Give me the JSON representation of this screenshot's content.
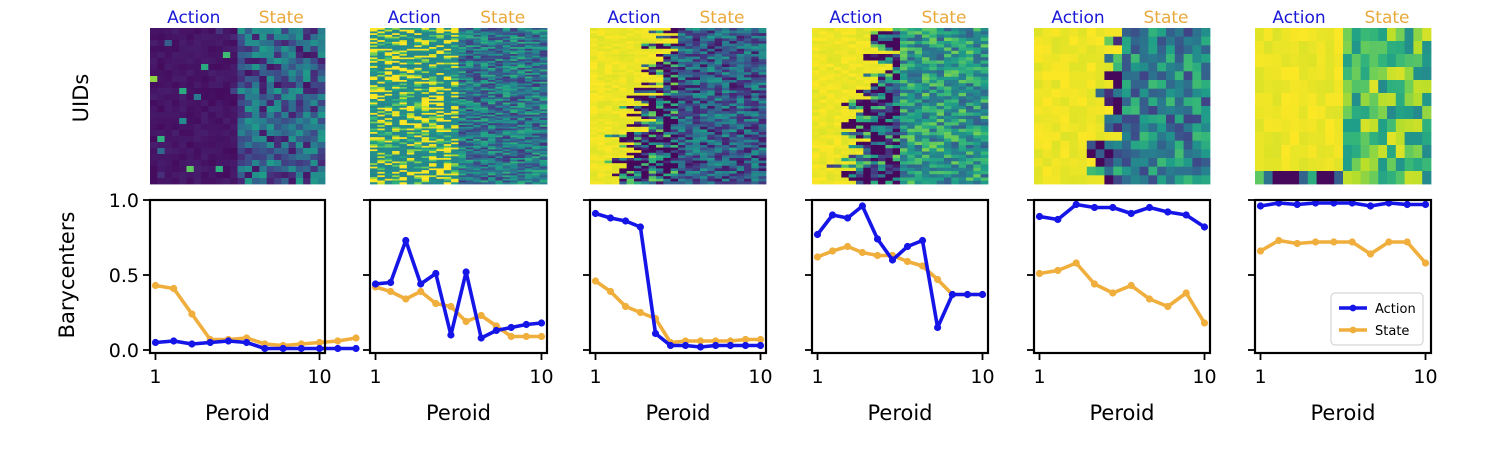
{
  "colors": {
    "action": "#1515e8",
    "state": "#f0ae3c",
    "action_title": "#1a1ad6",
    "state_title": "#e9a93c"
  },
  "icons": [
    "viridis-colormap"
  ],
  "chart_data": [
    {
      "type": "heatmap",
      "row": "top",
      "ylabel": "UIDs",
      "left_title": "Action",
      "right_title": "State",
      "panels": [
        {
          "rows": 26,
          "action_cols": 12,
          "state_cols": 12,
          "action_level": 0.03,
          "action_yellow_start": 1.1,
          "state_level": 0.3
        },
        {
          "rows": 90,
          "action_cols": 12,
          "state_cols": 12,
          "action_level": 0.45,
          "action_yellow_start": 1.1,
          "state_level": 0.4
        },
        {
          "rows": 60,
          "action_cols": 12,
          "state_cols": 12,
          "action_level": 0.55,
          "action_yellow_start": 0.0,
          "state_level": 0.3
        },
        {
          "rows": 48,
          "action_cols": 12,
          "state_cols": 12,
          "action_level": 0.6,
          "action_yellow_start": 0.0,
          "state_level": 0.55
        },
        {
          "rows": 18,
          "action_cols": 10,
          "state_cols": 10,
          "action_level": 0.8,
          "action_yellow_start": 0.0,
          "state_level": 0.45
        },
        {
          "rows": 12,
          "action_cols": 10,
          "state_cols": 10,
          "action_level": 1.0,
          "action_yellow_start": 0.0,
          "state_level": 0.72
        }
      ]
    },
    {
      "type": "line",
      "row": "bottom",
      "ylabel": "Barycenters",
      "xlabel": "Peroid",
      "xlim": [
        0.7,
        10.3
      ],
      "ylim": [
        -0.02,
        1.0
      ],
      "xticks": [
        1,
        10
      ],
      "yticks": [
        0.0,
        0.5,
        1.0
      ],
      "ytick_labels": [
        "0.0",
        "0.5",
        "1.0"
      ],
      "legend": {
        "location": "lower-right",
        "panel_index": 5,
        "entries": [
          "Action",
          "State"
        ]
      },
      "panels": [
        {
          "action_x": [
            1,
            2,
            3,
            4,
            5,
            6,
            7,
            8,
            9,
            10,
            11,
            12
          ],
          "action": [
            0.05,
            0.06,
            0.04,
            0.05,
            0.06,
            0.05,
            0.01,
            0.01,
            0.01,
            0.01,
            0.01,
            0.01
          ],
          "state_x": [
            1,
            2,
            3,
            4,
            5,
            6,
            7,
            8,
            9,
            10,
            11,
            12
          ],
          "state": [
            0.43,
            0.41,
            0.24,
            0.07,
            0.07,
            0.08,
            0.04,
            0.03,
            0.04,
            0.05,
            0.06,
            0.08
          ]
        },
        {
          "action_x": [
            1,
            1.82,
            2.64,
            3.45,
            4.27,
            5.09,
            5.91,
            6.73,
            7.55,
            8.36,
            9.18,
            10
          ],
          "action": [
            0.44,
            0.45,
            0.73,
            0.44,
            0.51,
            0.1,
            0.52,
            0.08,
            0.13,
            0.15,
            0.17,
            0.18
          ],
          "state_x": [
            1,
            1.82,
            2.64,
            3.45,
            4.27,
            5.09,
            5.91,
            6.73,
            7.55,
            8.36,
            9.18,
            10
          ],
          "state": [
            0.42,
            0.39,
            0.34,
            0.39,
            0.31,
            0.29,
            0.19,
            0.23,
            0.16,
            0.09,
            0.09,
            0.09
          ]
        },
        {
          "action_x": [
            1,
            1.82,
            2.64,
            3.45,
            4.27,
            5.09,
            5.91,
            6.73,
            7.55,
            8.36,
            9.18,
            10
          ],
          "action": [
            0.91,
            0.88,
            0.86,
            0.82,
            0.11,
            0.03,
            0.03,
            0.02,
            0.03,
            0.03,
            0.03,
            0.03
          ],
          "state_x": [
            1,
            1.82,
            2.64,
            3.45,
            4.27,
            5.09,
            5.91,
            6.73,
            7.55,
            8.36,
            9.18,
            10
          ],
          "state": [
            0.46,
            0.39,
            0.29,
            0.25,
            0.21,
            0.05,
            0.06,
            0.06,
            0.06,
            0.06,
            0.07,
            0.07
          ]
        },
        {
          "action_x": [
            1,
            1.82,
            2.64,
            3.45,
            4.27,
            5.09,
            5.91,
            6.73,
            7.55,
            8.36,
            9.18,
            10
          ],
          "action": [
            0.77,
            0.9,
            0.88,
            0.96,
            0.74,
            0.6,
            0.69,
            0.73,
            0.15,
            0.37,
            0.37,
            0.37
          ],
          "state_x": [
            1,
            1.82,
            2.64,
            3.45,
            4.27,
            5.09,
            5.91,
            6.73,
            7.55,
            8.36,
            9.18,
            10
          ],
          "state": [
            0.62,
            0.66,
            0.69,
            0.65,
            0.63,
            0.63,
            0.59,
            0.56,
            0.47,
            0.37,
            0.37,
            0.37
          ]
        },
        {
          "action_x": [
            1,
            2,
            3,
            4,
            5,
            6,
            7,
            8,
            9,
            10
          ],
          "action": [
            0.89,
            0.87,
            0.97,
            0.95,
            0.95,
            0.91,
            0.95,
            0.92,
            0.9,
            0.82
          ],
          "state_x": [
            1,
            2,
            3,
            4,
            5,
            6,
            7,
            8,
            9,
            10
          ],
          "state": [
            0.51,
            0.53,
            0.58,
            0.44,
            0.38,
            0.43,
            0.34,
            0.29,
            0.38,
            0.18
          ]
        },
        {
          "action_x": [
            1,
            2,
            3,
            4,
            5,
            6,
            7,
            8,
            9,
            10
          ],
          "action": [
            0.96,
            0.98,
            0.97,
            0.98,
            0.98,
            0.98,
            0.96,
            0.98,
            0.97,
            0.97
          ],
          "state_x": [
            1,
            2,
            3,
            4,
            5,
            6,
            7,
            8,
            9,
            10
          ],
          "state": [
            0.66,
            0.73,
            0.71,
            0.72,
            0.72,
            0.72,
            0.64,
            0.72,
            0.72,
            0.58
          ]
        }
      ]
    }
  ]
}
